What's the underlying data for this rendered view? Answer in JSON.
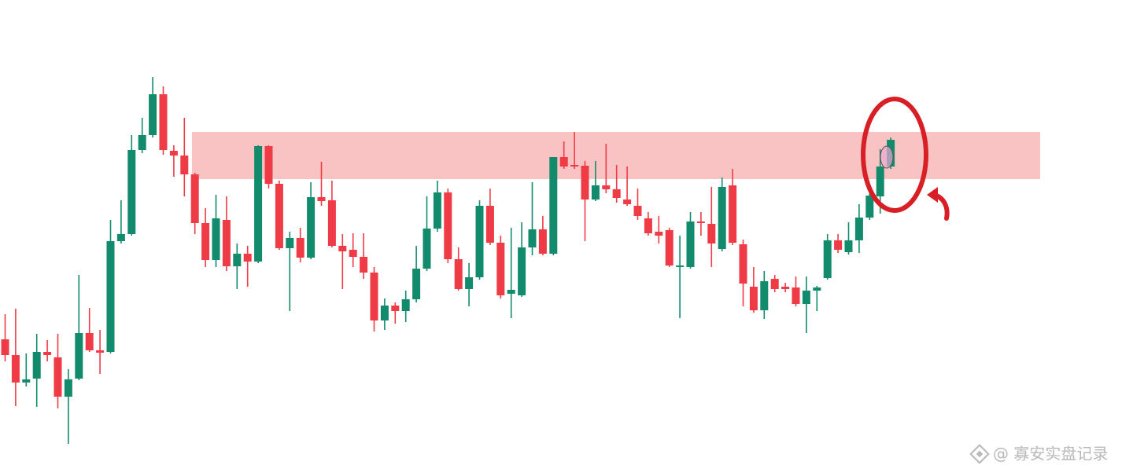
{
  "chart_data": {
    "type": "candlestick",
    "open": [
      174,
      154,
      119,
      124,
      158,
      151,
      101,
      124,
      182,
      160,
      158,
      299,
      308,
      415,
      434,
      486,
      414,
      408,
      384,
      322,
      275,
      326,
      267,
      283,
      273,
      420,
      372,
      290,
      303,
      278,
      355,
      351,
      293,
      288,
      279,
      259,
      198,
      217,
      210,
      225,
      264,
      315,
      361,
      276,
      238,
      253,
      344,
      297,
      232,
      230,
      291,
      314,
      283,
      406,
      396,
      395,
      352,
      370,
      365,
      352,
      344,
      328,
      311,
      313,
      266,
      266,
      324,
      321,
      289,
      370,
      295,
      241,
      211,
      251,
      241,
      240,
      219,
      236,
      252,
      300,
      285,
      300,
      329,
      356,
      394
    ],
    "high": [
      206,
      213,
      156,
      181,
      173,
      181,
      136,
      256,
      214,
      186,
      326,
      351,
      434,
      456,
      508,
      496,
      421,
      456,
      386,
      341,
      358,
      356,
      296,
      293,
      421,
      421,
      376,
      311,
      316,
      374,
      400,
      376,
      308,
      309,
      309,
      266,
      226,
      221,
      236,
      293,
      356,
      376,
      366,
      291,
      271,
      351,
      366,
      306,
      316,
      323,
      374,
      331,
      406,
      426,
      438,
      401,
      401,
      423,
      396,
      394,
      366,
      336,
      331,
      316,
      306,
      336,
      336,
      368,
      380,
      391,
      301,
      266,
      261,
      256,
      246,
      254,
      254,
      242,
      308,
      308,
      323,
      346,
      366,
      416,
      431
    ],
    "low": [
      146,
      89,
      114,
      88,
      146,
      86,
      41,
      122,
      158,
      130,
      156,
      296,
      306,
      411,
      431,
      409,
      381,
      356,
      308,
      266,
      266,
      261,
      238,
      241,
      271,
      366,
      288,
      210,
      272,
      276,
      344,
      291,
      238,
      266,
      251,
      184,
      186,
      194,
      196,
      221,
      261,
      311,
      271,
      236,
      216,
      250,
      294,
      226,
      201,
      228,
      281,
      281,
      281,
      391,
      391,
      299,
      350,
      360,
      348,
      344,
      326,
      306,
      296,
      266,
      201,
      264,
      306,
      266,
      286,
      294,
      216,
      208,
      200,
      234,
      234,
      216,
      182,
      210,
      250,
      284,
      282,
      284,
      326,
      334,
      391
    ],
    "close": [
      154,
      119,
      123,
      158,
      154,
      101,
      123,
      182,
      160,
      157,
      299,
      308,
      415,
      434,
      486,
      415,
      408,
      384,
      322,
      275,
      328,
      267,
      283,
      273,
      420,
      372,
      290,
      303,
      278,
      355,
      350,
      293,
      286,
      279,
      259,
      198,
      217,
      210,
      225,
      264,
      315,
      361,
      276,
      238,
      253,
      344,
      297,
      230,
      237,
      291,
      314,
      283,
      406,
      394,
      394,
      352,
      370,
      365,
      354,
      346,
      331,
      309,
      306,
      268,
      268,
      324,
      322,
      296,
      368,
      297,
      245,
      211,
      248,
      238,
      238,
      219,
      236,
      240,
      300,
      288,
      300,
      329,
      357,
      394,
      428
    ],
    "up_color": "#128a6c",
    "down_color": "#ee3b45",
    "ylim": [
      0,
      606
    ],
    "zone": {
      "from": 378,
      "to": 438,
      "color": "#f9b9b9"
    },
    "watermark": "@ 寡安实盘记录"
  }
}
